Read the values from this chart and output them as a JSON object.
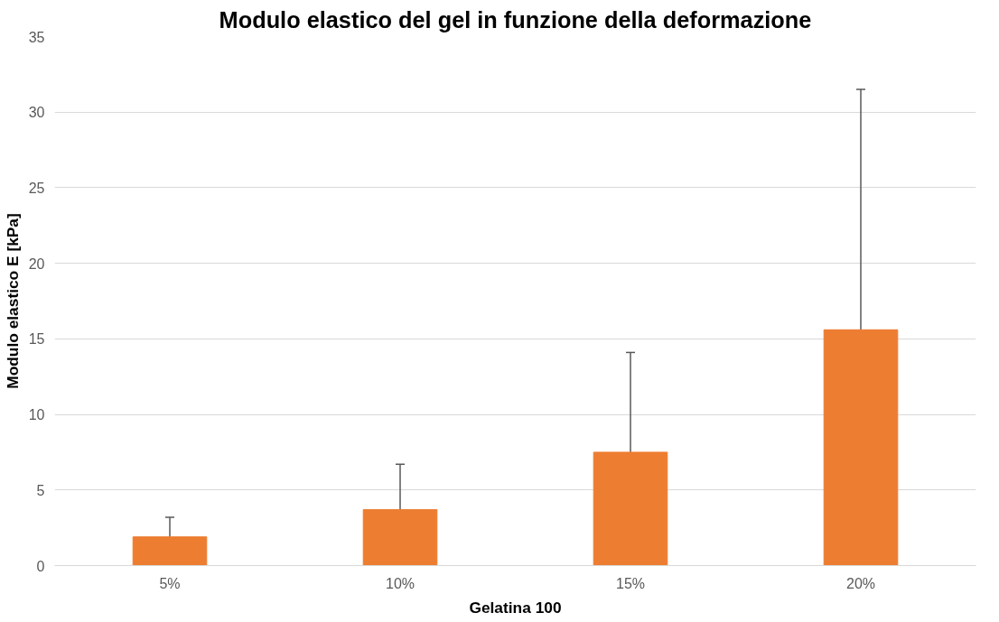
{
  "chart_data": {
    "type": "bar",
    "title": "Modulo elastico del gel in funzione della deformazione",
    "xlabel": "Gelatina 100",
    "ylabel": "Modulo elastico E [kPa]",
    "categories": [
      "5%",
      "10%",
      "15%",
      "20%"
    ],
    "values": [
      1.9,
      3.7,
      7.5,
      15.6
    ],
    "errors": [
      [
        1.9,
        3.2
      ],
      [
        3.7,
        6.7
      ],
      [
        7.5,
        14.1
      ],
      [
        15.6,
        31.5
      ]
    ],
    "color": "#ed7d31",
    "ylim": [
      0,
      35
    ],
    "yticks": [
      0,
      5,
      10,
      15,
      20,
      25,
      30,
      35
    ],
    "grid": "y"
  }
}
